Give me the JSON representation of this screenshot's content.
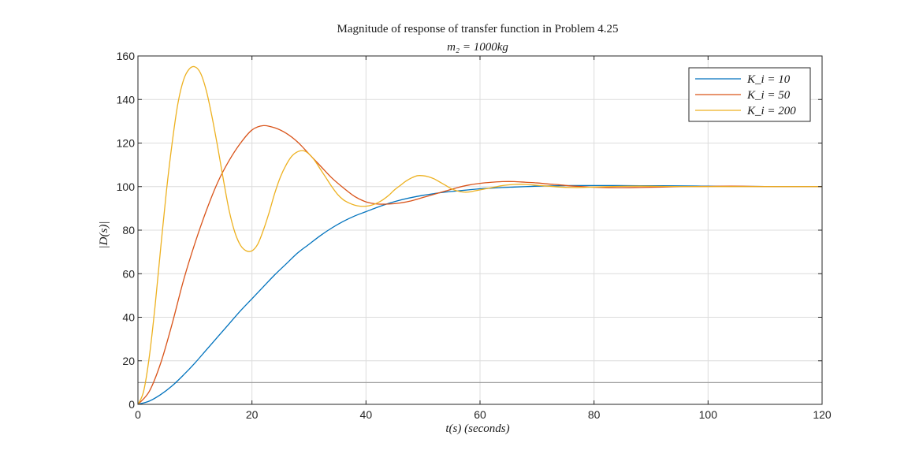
{
  "chart_data": {
    "type": "line",
    "title": "Magnitude of response of transfer function in Problem 4.25",
    "subtitle": "m₂ = 1000kg",
    "xlabel": "t(s)  (seconds)",
    "ylabel": "|D(s)|",
    "xlim": [
      0,
      120
    ],
    "ylim": [
      0,
      160
    ],
    "xticks": [
      0,
      20,
      40,
      60,
      80,
      100,
      120
    ],
    "yticks": [
      0,
      20,
      40,
      60,
      80,
      100,
      120,
      140,
      160
    ],
    "grid": true,
    "legend_position": "top-right",
    "reference_line": {
      "y": 10,
      "color": "#a0a0a0"
    },
    "series": [
      {
        "name": "K_i = 10",
        "color": "#0072BD",
        "x": [
          0,
          2,
          4,
          6,
          8,
          10,
          12,
          14,
          16,
          18,
          20,
          22,
          24,
          26,
          28,
          30,
          32,
          34,
          36,
          38,
          40,
          42,
          44,
          46,
          48,
          50,
          52,
          54,
          56,
          58,
          60,
          62,
          64,
          66,
          68,
          70,
          72,
          74,
          76,
          78,
          80,
          84,
          88,
          92,
          96,
          100,
          104,
          108,
          112,
          116,
          120
        ],
        "y": [
          0,
          1.5,
          4.5,
          8.5,
          13.5,
          19,
          25,
          31,
          37,
          43,
          48.5,
          54,
          59.5,
          64.5,
          69.5,
          73.5,
          77.5,
          81,
          84,
          86.5,
          88.5,
          90.5,
          92.3,
          93.8,
          95,
          96,
          96.8,
          97.5,
          98,
          98.5,
          99,
          99.3,
          99.6,
          99.8,
          100,
          100.2,
          100.3,
          100.4,
          100.5,
          100.5,
          100.5,
          100.5,
          100.4,
          100.4,
          100.3,
          100.2,
          100.1,
          100.1,
          100,
          100,
          100
        ]
      },
      {
        "name": "K_i = 50",
        "color": "#D95319",
        "x": [
          0,
          2,
          4,
          6,
          8,
          10,
          12,
          14,
          16,
          18,
          20,
          22,
          24,
          26,
          28,
          30,
          32,
          34,
          36,
          38,
          40,
          42,
          44,
          46,
          48,
          50,
          52,
          54,
          56,
          58,
          60,
          62,
          64,
          66,
          68,
          70,
          72,
          74,
          76,
          78,
          80,
          84,
          88,
          92,
          96,
          100,
          104,
          108,
          112,
          116,
          120
        ],
        "y": [
          0,
          6,
          19,
          37,
          57,
          74,
          89,
          102,
          112,
          120,
          126,
          128,
          127,
          124.5,
          120.5,
          115,
          109.5,
          104,
          99.5,
          95.5,
          93,
          92,
          92,
          92.5,
          93.5,
          95,
          96.5,
          98,
          99.5,
          100.7,
          101.5,
          102,
          102.3,
          102.3,
          102,
          101.7,
          101.2,
          100.8,
          100.3,
          100,
          99.7,
          99.5,
          99.6,
          99.8,
          100,
          100.1,
          100.2,
          100.1,
          100,
          100,
          100
        ]
      },
      {
        "name": "K_i = 200",
        "color": "#EDB120",
        "x": [
          0,
          1,
          2,
          3,
          4,
          5,
          6,
          7,
          8,
          9,
          10,
          11,
          12,
          13,
          14,
          15,
          16,
          17,
          18,
          19,
          20,
          21,
          22,
          23,
          24,
          25,
          26,
          27,
          28,
          29,
          30,
          31,
          32,
          33,
          34,
          35,
          36,
          37,
          38,
          39,
          40,
          41,
          42,
          43,
          44,
          45,
          46,
          47,
          48,
          49,
          50,
          51,
          52,
          53,
          54,
          55,
          56,
          57,
          58,
          59,
          60,
          61,
          62,
          63,
          64,
          66,
          68,
          70,
          72,
          74,
          76,
          78,
          80,
          84,
          88,
          92,
          96,
          100,
          104,
          108,
          112,
          116,
          120
        ],
        "y": [
          0,
          6,
          22,
          45,
          72,
          98,
          120,
          138,
          149,
          154,
          155,
          152,
          144,
          132,
          118,
          103,
          89,
          79,
          73,
          70.5,
          70.5,
          73.5,
          80,
          88,
          97,
          104.5,
          110,
          114,
          116,
          116.5,
          115,
          112,
          108,
          104,
          100,
          96.5,
          94,
          92.5,
          91.5,
          91,
          91,
          91.5,
          92.5,
          94,
          96,
          98.5,
          100.5,
          102.5,
          104,
          105,
          105,
          104.5,
          103.5,
          102,
          100.5,
          99,
          98,
          97.5,
          97.5,
          98,
          98.5,
          99,
          99.5,
          100,
          100.5,
          101,
          101,
          100.6,
          100.2,
          99.8,
          99.6,
          99.6,
          99.8,
          100.1,
          100.2,
          100.1,
          100,
          100,
          100,
          100,
          100,
          100,
          100
        ]
      }
    ]
  }
}
